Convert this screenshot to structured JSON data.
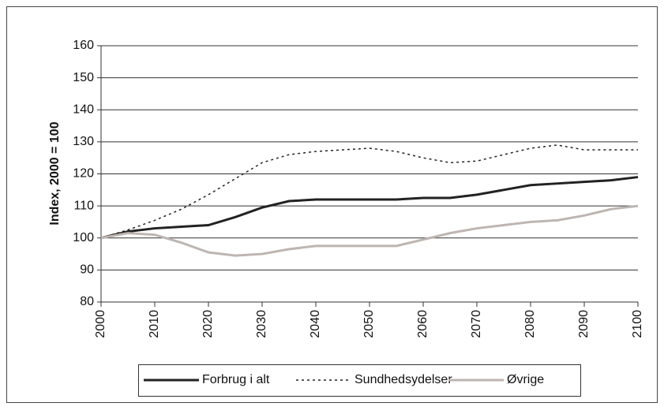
{
  "chart_data": {
    "type": "line",
    "y_label": "Index, 2000 = 100",
    "x": [
      2000,
      2005,
      2010,
      2015,
      2020,
      2025,
      2030,
      2035,
      2040,
      2045,
      2050,
      2055,
      2060,
      2065,
      2070,
      2075,
      2080,
      2085,
      2090,
      2095,
      2100
    ],
    "series": [
      {
        "name": "Forbrug i alt",
        "color": "#222222",
        "style": "solid",
        "values": [
          100,
          102,
          103,
          103.5,
          104,
          106.5,
          109.5,
          111.5,
          112,
          112,
          112,
          112,
          112.5,
          112.5,
          113.5,
          115,
          116.5,
          117,
          117.5,
          118,
          119
        ]
      },
      {
        "name": "Sundhedsydelser",
        "color": "#222222",
        "style": "dotted",
        "values": [
          100,
          102.5,
          105.5,
          109,
          113.5,
          118.5,
          123.5,
          126,
          127,
          127.5,
          128,
          127,
          125,
          123.5,
          124,
          126,
          128,
          129,
          127.5,
          127.5,
          127.5
        ]
      },
      {
        "name": "Øvrige",
        "color": "#bdb5b0",
        "style": "solid",
        "values": [
          100,
          101.5,
          101,
          98.5,
          95.5,
          94.5,
          95,
          96.5,
          97.5,
          97.5,
          97.5,
          97.5,
          99.5,
          101.5,
          103,
          104,
          105,
          105.5,
          107,
          109,
          110
        ]
      }
    ],
    "xlim": [
      2000,
      2100
    ],
    "xticks": [
      2000,
      2010,
      2020,
      2030,
      2040,
      2050,
      2060,
      2070,
      2080,
      2090,
      2100
    ],
    "ylim": [
      80,
      160
    ],
    "yticks": [
      80,
      90,
      100,
      110,
      120,
      130,
      140,
      150,
      160
    ],
    "grid": true,
    "legend": "bottom"
  }
}
